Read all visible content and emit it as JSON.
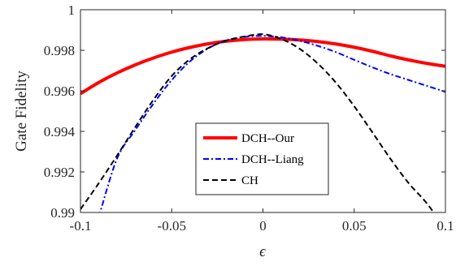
{
  "chart_data": {
    "type": "line",
    "title": "",
    "xlabel": "ϵ",
    "ylabel": "Gate Fidelity",
    "xlim": [
      -0.1,
      0.1
    ],
    "ylim": [
      0.99,
      1.0
    ],
    "xticks": [
      -0.1,
      -0.05,
      0,
      0.05,
      0.1
    ],
    "xtick_labels": [
      "-0.1",
      "-0.05",
      "0",
      "0.05",
      "0.1"
    ],
    "yticks": [
      0.99,
      0.992,
      0.994,
      0.996,
      0.998,
      1.0
    ],
    "ytick_labels": [
      "0.99",
      "0.992",
      "0.994",
      "0.996",
      "0.998",
      "1"
    ],
    "grid": false,
    "legend_position": "center",
    "x": [
      -0.1,
      -0.09,
      -0.08,
      -0.07,
      -0.06,
      -0.05,
      -0.04,
      -0.03,
      -0.02,
      -0.01,
      0,
      0.01,
      0.02,
      0.03,
      0.04,
      0.05,
      0.06,
      0.07,
      0.08,
      0.09,
      0.1
    ],
    "series": [
      {
        "name": "DCH--Our",
        "color": "#ff0000",
        "style": "solid",
        "values": [
          0.99586,
          0.99641,
          0.99688,
          0.99728,
          0.99762,
          0.99791,
          0.99814,
          0.99832,
          0.99845,
          0.99853,
          0.99856,
          0.99855,
          0.99851,
          0.99843,
          0.99831,
          0.99815,
          0.99795,
          0.99772,
          0.99752,
          0.99735,
          0.99721
        ]
      },
      {
        "name": "DCH--Liang",
        "color": "#0000ff",
        "style": "dashdot",
        "values": [
          null,
          0.98976,
          0.99265,
          0.99406,
          0.99537,
          0.99653,
          0.99745,
          0.99809,
          0.99849,
          0.99866,
          0.99871,
          0.99864,
          0.99847,
          0.99822,
          0.99791,
          0.99753,
          0.99716,
          0.99682,
          0.99653,
          0.99624,
          0.99595
        ]
      },
      {
        "name": "CH",
        "color": "#000000",
        "style": "dashed",
        "values": [
          0.99016,
          0.99144,
          0.9928,
          0.99421,
          0.99556,
          0.99673,
          0.99756,
          0.99811,
          0.99848,
          0.99868,
          0.99879,
          0.99856,
          0.99808,
          0.99735,
          0.9964,
          0.99524,
          0.99395,
          0.99263,
          0.99143,
          0.99043,
          0.98916
        ]
      }
    ]
  }
}
